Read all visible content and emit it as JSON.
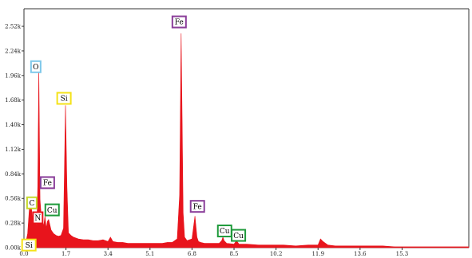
{
  "chart_data": {
    "type": "area",
    "title": "",
    "xlabel": "",
    "ylabel": "",
    "xlim": [
      0,
      18
    ],
    "ylim": [
      0,
      2.72
    ],
    "x_ticks": [
      {
        "value": 0.0,
        "label": "0.0"
      },
      {
        "value": 1.7,
        "label": "1.7"
      },
      {
        "value": 3.4,
        "label": "3.4"
      },
      {
        "value": 5.1,
        "label": "5.1"
      },
      {
        "value": 6.8,
        "label": "6.8"
      },
      {
        "value": 8.5,
        "label": "8.5"
      },
      {
        "value": 10.2,
        "label": "10.2"
      },
      {
        "value": 11.9,
        "label": "11.9"
      },
      {
        "value": 13.6,
        "label": "13.6"
      },
      {
        "value": 15.3,
        "label": "15.3"
      }
    ],
    "y_ticks": [
      {
        "value": 0.0,
        "label": "0.00k"
      },
      {
        "value": 0.28,
        "label": "0.28k"
      },
      {
        "value": 0.56,
        "label": "0.56k"
      },
      {
        "value": 0.84,
        "label": "0.84k"
      },
      {
        "value": 1.12,
        "label": "1.12k"
      },
      {
        "value": 1.4,
        "label": "1.40k"
      },
      {
        "value": 1.68,
        "label": "1.68k"
      },
      {
        "value": 1.96,
        "label": "1.96k"
      },
      {
        "value": 2.24,
        "label": "2.24k"
      },
      {
        "value": 2.52,
        "label": "2.52k"
      }
    ],
    "series": [
      {
        "color": "#e8141c",
        "x": [
          0.05,
          0.15,
          0.22,
          0.28,
          0.33,
          0.38,
          0.45,
          0.52,
          0.56,
          0.6,
          0.65,
          0.7,
          0.75,
          0.8,
          0.85,
          0.9,
          0.95,
          1.0,
          1.1,
          1.2,
          1.3,
          1.4,
          1.5,
          1.6,
          1.68,
          1.74,
          1.8,
          1.9,
          2.0,
          2.2,
          2.4,
          2.6,
          2.8,
          3.0,
          3.2,
          3.4,
          3.5,
          3.6,
          3.8,
          4.0,
          4.2,
          4.4,
          4.6,
          4.8,
          5.0,
          5.2,
          5.4,
          5.6,
          5.8,
          6.0,
          6.2,
          6.3,
          6.36,
          6.4,
          6.44,
          6.5,
          6.6,
          6.8,
          6.92,
          7.0,
          7.06,
          7.15,
          7.3,
          7.6,
          7.9,
          8.0,
          8.05,
          8.1,
          8.2,
          8.5,
          8.6,
          8.7,
          9.0,
          9.5,
          10.0,
          10.5,
          11.0,
          11.5,
          11.9,
          12.0,
          12.1,
          12.3,
          12.6,
          13.0,
          13.5,
          14.0,
          14.5,
          15.0,
          15.5,
          16.0,
          16.5,
          17.0,
          17.5,
          18.0
        ],
        "y": [
          0.02,
          0.16,
          0.45,
          0.55,
          0.35,
          0.28,
          0.3,
          0.25,
          0.7,
          2.04,
          0.55,
          0.35,
          0.3,
          0.25,
          0.36,
          0.22,
          0.3,
          0.32,
          0.2,
          0.16,
          0.14,
          0.13,
          0.14,
          0.22,
          1.62,
          0.7,
          0.17,
          0.14,
          0.12,
          0.1,
          0.09,
          0.09,
          0.08,
          0.08,
          0.09,
          0.07,
          0.12,
          0.07,
          0.06,
          0.06,
          0.05,
          0.05,
          0.05,
          0.05,
          0.05,
          0.05,
          0.05,
          0.05,
          0.06,
          0.06,
          0.1,
          0.6,
          2.44,
          1.5,
          0.4,
          0.12,
          0.08,
          0.1,
          0.36,
          0.12,
          0.07,
          0.06,
          0.05,
          0.05,
          0.05,
          0.08,
          0.12,
          0.08,
          0.05,
          0.04,
          0.08,
          0.04,
          0.04,
          0.03,
          0.03,
          0.03,
          0.02,
          0.03,
          0.03,
          0.1,
          0.07,
          0.03,
          0.02,
          0.02,
          0.02,
          0.02,
          0.02,
          0.01,
          0.01,
          0.01,
          0.01,
          0.01,
          0.01,
          0.01
        ]
      }
    ],
    "annotations": [
      {
        "text": "O",
        "x": 0.48,
        "y": 2.06,
        "color": "#7ec8ea"
      },
      {
        "text": "Si",
        "x": 1.62,
        "y": 1.7,
        "color": "#f4e218"
      },
      {
        "text": "Fe",
        "x": 6.28,
        "y": 2.57,
        "color": "#8b3f9a"
      },
      {
        "text": "Fe",
        "x": 0.95,
        "y": 0.74,
        "color": "#8b3f9a"
      },
      {
        "text": "C",
        "x": 0.32,
        "y": 0.51,
        "color": "#c6d92a"
      },
      {
        "text": "N",
        "x": 0.56,
        "y": 0.34,
        "color": "#e8141c"
      },
      {
        "text": "Cu",
        "x": 1.14,
        "y": 0.43,
        "color": "#1f9a3b"
      },
      {
        "text": "Fe",
        "x": 7.02,
        "y": 0.47,
        "color": "#8b3f9a"
      },
      {
        "text": "Cu",
        "x": 8.12,
        "y": 0.19,
        "color": "#1f9a3b"
      },
      {
        "text": "Cu",
        "x": 8.68,
        "y": 0.14,
        "color": "#1f9a3b"
      },
      {
        "text": "Si",
        "x": 0.2,
        "y": 0.03,
        "color": "#f4e218"
      }
    ]
  }
}
